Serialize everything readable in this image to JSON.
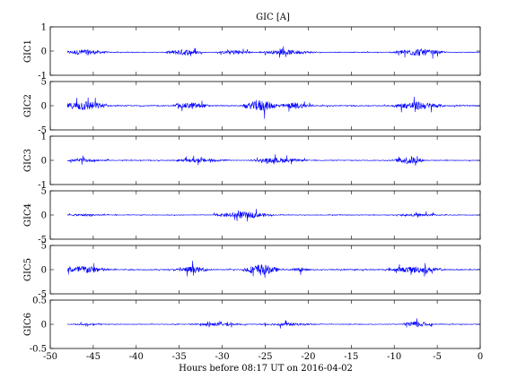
{
  "chart_data": {
    "type": "line",
    "title": "GIC [A]",
    "xlabel": "Hours before  08:17 UT on 2016-04-02",
    "xlim": [
      -50,
      0
    ],
    "x_ticks": [
      -50,
      -45,
      -40,
      -35,
      -30,
      -25,
      -20,
      -15,
      -10,
      -5,
      0
    ],
    "grid": false,
    "line_color": "#0000ff",
    "panels": [
      {
        "ylabel": "GIC1",
        "ylim": [
          -1,
          1
        ],
        "y_ticks": [
          -1,
          0,
          1
        ],
        "baseline": -0.05,
        "approx_peak_amplitude": 0.45,
        "active_intervals": [
          {
            "x": [
              -48,
              -44
            ],
            "amplitude": 0.35
          },
          {
            "x": [
              -36,
              -33
            ],
            "amplitude": 0.4
          },
          {
            "x": [
              -30,
              -27
            ],
            "amplitude": 0.3
          },
          {
            "x": [
              -25,
              -20
            ],
            "amplitude": 0.3
          },
          {
            "x": [
              -9.5,
              -5
            ],
            "amplitude": 0.45
          }
        ]
      },
      {
        "ylabel": "GIC2",
        "ylim": [
          -5,
          5
        ],
        "y_ticks": [
          -5,
          0,
          5
        ],
        "baseline": 0,
        "approx_peak_amplitude": 3.5,
        "active_intervals": [
          {
            "x": [
              -48,
              -44
            ],
            "amplitude": 3.0
          },
          {
            "x": [
              -35,
              -32
            ],
            "amplitude": 2.0
          },
          {
            "x": [
              -27,
              -24
            ],
            "amplitude": 3.5
          },
          {
            "x": [
              -23,
              -20
            ],
            "amplitude": 2.0
          },
          {
            "x": [
              -9.5,
              -5
            ],
            "amplitude": 2.5
          }
        ]
      },
      {
        "ylabel": "GIC3",
        "ylim": [
          -1,
          1
        ],
        "y_ticks": [
          -1,
          0,
          1
        ],
        "baseline": 0,
        "approx_peak_amplitude": 0.5,
        "active_intervals": [
          {
            "x": [
              -48,
              -44
            ],
            "amplitude": 0.2
          },
          {
            "x": [
              -35,
              -30
            ],
            "amplitude": 0.25
          },
          {
            "x": [
              -26,
              -21
            ],
            "amplitude": 0.3
          },
          {
            "x": [
              -9.5,
              -7
            ],
            "amplitude": 0.5
          }
        ]
      },
      {
        "ylabel": "GIC4",
        "ylim": [
          -5,
          5
        ],
        "y_ticks": [
          -5,
          0,
          5
        ],
        "baseline": 0,
        "approx_peak_amplitude": 2.0,
        "active_intervals": [
          {
            "x": [
              -48,
              -44
            ],
            "amplitude": 0.8
          },
          {
            "x": [
              -30,
              -25
            ],
            "amplitude": 2.0
          },
          {
            "x": [
              -9,
              -5
            ],
            "amplitude": 0.9
          }
        ]
      },
      {
        "ylabel": "GIC5",
        "ylim": [
          -5,
          5
        ],
        "y_ticks": [
          -5,
          0,
          5
        ],
        "baseline": 0,
        "approx_peak_amplitude": 3.5,
        "active_intervals": [
          {
            "x": [
              -48,
              -44
            ],
            "amplitude": 2.5
          },
          {
            "x": [
              -35,
              -32
            ],
            "amplitude": 2.0
          },
          {
            "x": [
              -27,
              -24
            ],
            "amplitude": 3.5
          },
          {
            "x": [
              -22,
              -20
            ],
            "amplitude": 1.2
          },
          {
            "x": [
              -10,
              -5
            ],
            "amplitude": 2.0
          }
        ]
      },
      {
        "ylabel": "GIC6",
        "ylim": [
          -0.5,
          0.5
        ],
        "y_ticks": [
          -0.5,
          0,
          0.5
        ],
        "baseline": 0,
        "approx_peak_amplitude": 0.2,
        "active_intervals": [
          {
            "x": [
              -48,
              -44
            ],
            "amplitude": 0.05
          },
          {
            "x": [
              -33,
              -28
            ],
            "amplitude": 0.1
          },
          {
            "x": [
              -25,
              -20
            ],
            "amplitude": 0.1
          },
          {
            "x": [
              -8.5,
              -6
            ],
            "amplitude": 0.2
          }
        ]
      }
    ]
  }
}
